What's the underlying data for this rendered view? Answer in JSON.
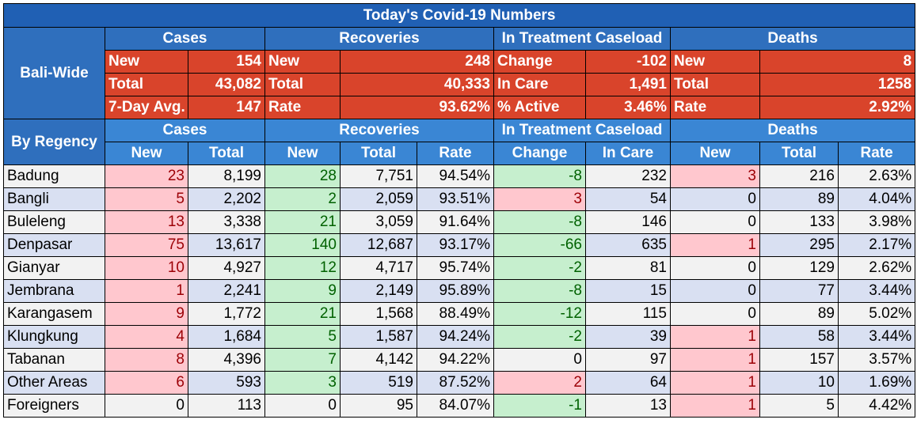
{
  "title": "Today's Covid-19 Numbers",
  "groups": [
    "Cases",
    "Recoveries",
    "In Treatment Caseload",
    "Deaths"
  ],
  "bali_wide": {
    "label": "Bali-Wide",
    "rows": [
      [
        "New",
        "154",
        "New",
        "248",
        "Change",
        "-102",
        "New",
        "8"
      ],
      [
        "Total",
        "43,082",
        "Total",
        "40,333",
        "In Care",
        "1,491",
        "Total",
        "1258"
      ],
      [
        "7-Day Avg.",
        "147",
        "Rate",
        "93.62%",
        "% Active",
        "3.46%",
        "Rate",
        "2.92%"
      ]
    ]
  },
  "by_regency": {
    "label": "By Regency",
    "subheaders": [
      "New",
      "Total",
      "New",
      "Total",
      "Rate",
      "Change",
      "In Care",
      "New",
      "Total",
      "Rate"
    ],
    "rows": [
      {
        "name": "Badung",
        "cells": [
          "23",
          "8,199",
          "28",
          "7,751",
          "94.54%",
          "-8",
          "232",
          "3",
          "216",
          "2.63%"
        ],
        "hl": [
          "pink",
          "",
          "green",
          "",
          "",
          "green",
          "",
          "pink",
          "",
          ""
        ]
      },
      {
        "name": "Bangli",
        "cells": [
          "5",
          "2,202",
          "2",
          "2,059",
          "93.51%",
          "3",
          "54",
          "0",
          "89",
          "4.04%"
        ],
        "hl": [
          "pink",
          "",
          "green",
          "",
          "",
          "pink",
          "",
          "",
          "",
          ""
        ]
      },
      {
        "name": "Buleleng",
        "cells": [
          "13",
          "3,338",
          "21",
          "3,059",
          "91.64%",
          "-8",
          "146",
          "0",
          "133",
          "3.98%"
        ],
        "hl": [
          "pink",
          "",
          "green",
          "",
          "",
          "green",
          "",
          "",
          "",
          ""
        ]
      },
      {
        "name": "Denpasar",
        "cells": [
          "75",
          "13,617",
          "140",
          "12,687",
          "93.17%",
          "-66",
          "635",
          "1",
          "295",
          "2.17%"
        ],
        "hl": [
          "pink",
          "",
          "green",
          "",
          "",
          "green",
          "",
          "pink",
          "",
          ""
        ]
      },
      {
        "name": "Gianyar",
        "cells": [
          "10",
          "4,927",
          "12",
          "4,717",
          "95.74%",
          "-2",
          "81",
          "0",
          "129",
          "2.62%"
        ],
        "hl": [
          "pink",
          "",
          "green",
          "",
          "",
          "green",
          "",
          "",
          "",
          ""
        ]
      },
      {
        "name": "Jembrana",
        "cells": [
          "1",
          "2,241",
          "9",
          "2,149",
          "95.89%",
          "-8",
          "15",
          "0",
          "77",
          "3.44%"
        ],
        "hl": [
          "pink",
          "",
          "green",
          "",
          "",
          "green",
          "",
          "",
          "",
          ""
        ]
      },
      {
        "name": "Karangasem",
        "cells": [
          "9",
          "1,772",
          "21",
          "1,568",
          "88.49%",
          "-12",
          "115",
          "0",
          "89",
          "5.02%"
        ],
        "hl": [
          "pink",
          "",
          "green",
          "",
          "",
          "green",
          "",
          "",
          "",
          ""
        ]
      },
      {
        "name": "Klungkung",
        "cells": [
          "4",
          "1,684",
          "5",
          "1,587",
          "94.24%",
          "-2",
          "39",
          "1",
          "58",
          "3.44%"
        ],
        "hl": [
          "pink",
          "",
          "green",
          "",
          "",
          "green",
          "",
          "pink",
          "",
          ""
        ]
      },
      {
        "name": "Tabanan",
        "cells": [
          "8",
          "4,396",
          "7",
          "4,142",
          "94.22%",
          "0",
          "97",
          "1",
          "157",
          "3.57%"
        ],
        "hl": [
          "pink",
          "",
          "green",
          "",
          "",
          "",
          "",
          "pink",
          "",
          ""
        ]
      },
      {
        "name": "Other Areas",
        "cells": [
          "6",
          "593",
          "3",
          "519",
          "87.52%",
          "2",
          "64",
          "1",
          "10",
          "1.69%"
        ],
        "hl": [
          "pink",
          "",
          "green",
          "",
          "",
          "pink",
          "",
          "pink",
          "",
          ""
        ]
      },
      {
        "name": "Foreigners",
        "cells": [
          "0",
          "113",
          "0",
          "95",
          "84.07%",
          "-1",
          "13",
          "1",
          "5",
          "4.42%"
        ],
        "hl": [
          "",
          "",
          "",
          "",
          "",
          "green",
          "",
          "pink",
          "",
          ""
        ]
      }
    ]
  }
}
